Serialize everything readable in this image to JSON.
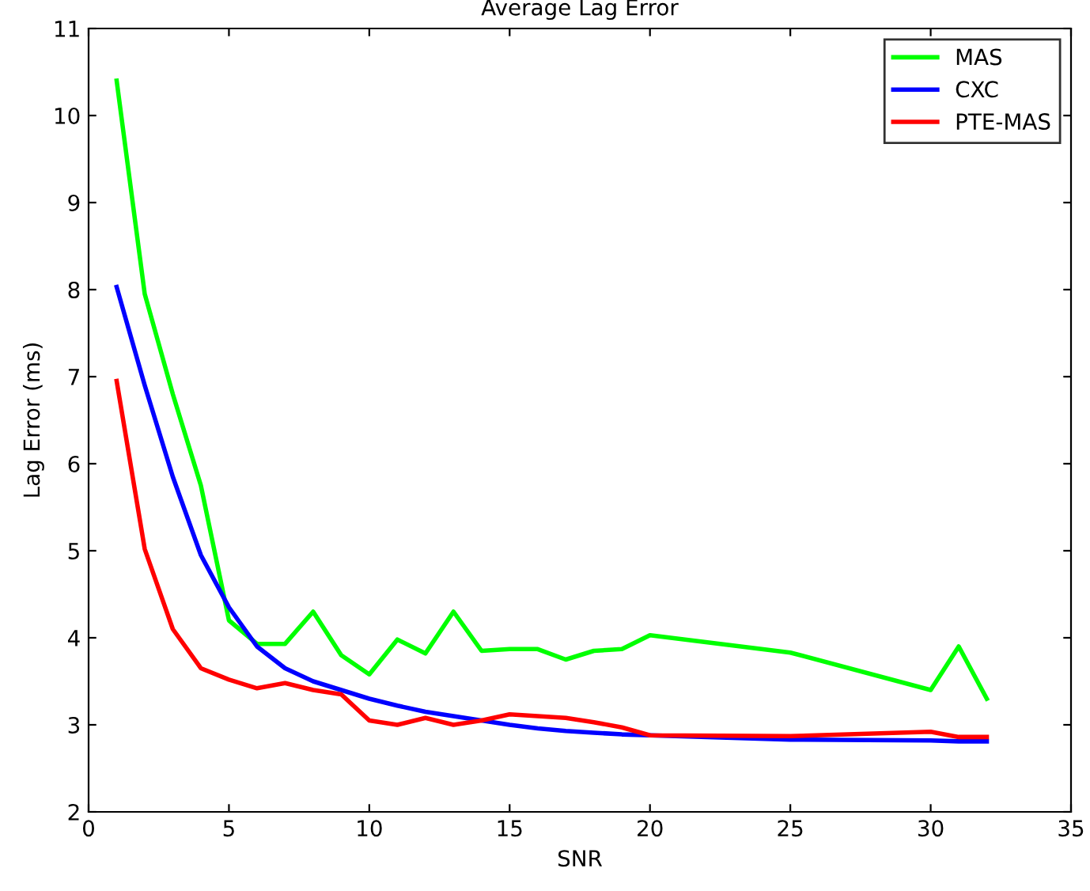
{
  "chart_data": {
    "type": "line",
    "title": "Average Lag Error",
    "xlabel": "SNR",
    "ylabel": "Lag Error (ms)",
    "x": [
      1,
      2,
      3,
      4,
      5,
      6,
      7,
      8,
      9,
      10,
      11,
      12,
      13,
      14,
      15,
      16,
      17,
      18,
      19,
      20,
      25,
      30,
      31,
      32
    ],
    "series": [
      {
        "name": "MAS",
        "color": "#00ff00",
        "values": [
          10.4,
          7.95,
          6.8,
          5.75,
          4.2,
          3.93,
          3.93,
          4.3,
          3.8,
          3.58,
          3.98,
          3.82,
          4.3,
          3.85,
          3.87,
          3.87,
          3.75,
          3.85,
          3.87,
          4.03,
          3.83,
          3.4,
          3.9,
          3.3
        ]
      },
      {
        "name": "CXC",
        "color": "#0000ff",
        "values": [
          8.03,
          6.9,
          5.85,
          4.95,
          4.35,
          3.9,
          3.65,
          3.5,
          3.4,
          3.3,
          3.22,
          3.15,
          3.1,
          3.05,
          3.0,
          2.96,
          2.93,
          2.91,
          2.89,
          2.88,
          2.83,
          2.82,
          2.81,
          2.81
        ]
      },
      {
        "name": "PTE-MAS",
        "color": "#ff0000",
        "values": [
          6.95,
          5.02,
          4.1,
          3.65,
          3.52,
          3.42,
          3.48,
          3.4,
          3.35,
          3.05,
          3.0,
          3.08,
          3.0,
          3.05,
          3.12,
          3.1,
          3.08,
          3.03,
          2.97,
          2.88,
          2.87,
          2.92,
          2.86,
          2.86
        ]
      }
    ],
    "xlim": [
      0,
      35
    ],
    "xticks": [
      0,
      5,
      10,
      15,
      20,
      25,
      30,
      35
    ],
    "ylim": [
      2,
      11
    ],
    "yticks": [
      2,
      3,
      4,
      5,
      6,
      7,
      8,
      9,
      10,
      11
    ],
    "grid": false,
    "legend": "top right",
    "line_style": "solid",
    "marker": "none"
  }
}
